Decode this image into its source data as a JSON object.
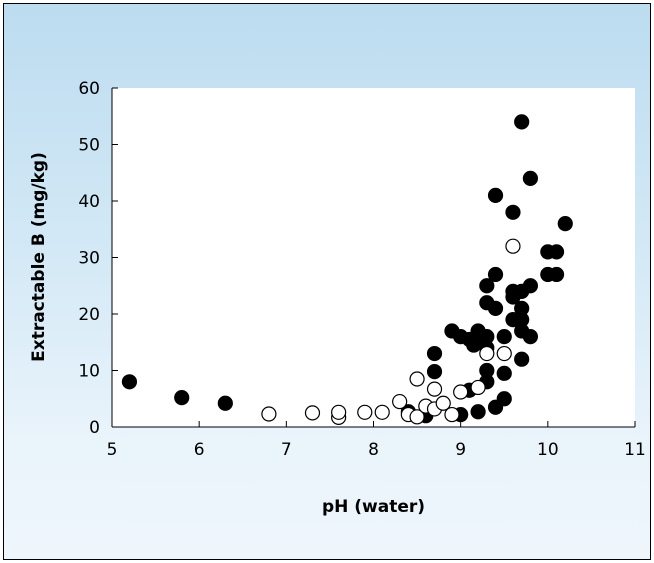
{
  "chart_data": {
    "type": "scatter",
    "title": "",
    "xlabel": "pH (water)",
    "ylabel": "Extractable B (mg/kg)",
    "xlim": [
      5,
      11
    ],
    "ylim": [
      0,
      60
    ],
    "x_ticks": [
      5,
      6,
      7,
      8,
      9,
      10,
      11
    ],
    "y_ticks": [
      0,
      10,
      20,
      30,
      40,
      50,
      60
    ],
    "grid": false,
    "legend": "none",
    "colors": {
      "filled_marker": "#000000",
      "open_marker_fill": "#ffffff",
      "open_marker_edge": "#000000",
      "plot_area": "#ffffff"
    },
    "series": [
      {
        "marker": "filled-circle",
        "points": [
          [
            5.2,
            8
          ],
          [
            5.8,
            5.2
          ],
          [
            6.3,
            4.2
          ],
          [
            8.4,
            2.7
          ],
          [
            8.6,
            2
          ],
          [
            8.7,
            9.8
          ],
          [
            8.7,
            13
          ],
          [
            8.9,
            17
          ],
          [
            9.0,
            2.2
          ],
          [
            9.0,
            16
          ],
          [
            9.1,
            6.5
          ],
          [
            9.1,
            15.5
          ],
          [
            9.15,
            14.5
          ],
          [
            9.2,
            2.7
          ],
          [
            9.2,
            17
          ],
          [
            9.25,
            15.5
          ],
          [
            9.3,
            8
          ],
          [
            9.3,
            10
          ],
          [
            9.3,
            14
          ],
          [
            9.3,
            16
          ],
          [
            9.3,
            22
          ],
          [
            9.3,
            25
          ],
          [
            9.4,
            3.5
          ],
          [
            9.4,
            21
          ],
          [
            9.4,
            27
          ],
          [
            9.4,
            41
          ],
          [
            9.5,
            5
          ],
          [
            9.5,
            9.5
          ],
          [
            9.5,
            16
          ],
          [
            9.6,
            19
          ],
          [
            9.6,
            23
          ],
          [
            9.6,
            24
          ],
          [
            9.6,
            38
          ],
          [
            9.7,
            12
          ],
          [
            9.7,
            17
          ],
          [
            9.7,
            19
          ],
          [
            9.7,
            21
          ],
          [
            9.7,
            24
          ],
          [
            9.7,
            54
          ],
          [
            9.8,
            16
          ],
          [
            9.8,
            25
          ],
          [
            9.8,
            44
          ],
          [
            10.0,
            27
          ],
          [
            10.0,
            31
          ],
          [
            10.1,
            27
          ],
          [
            10.1,
            31
          ],
          [
            10.2,
            36
          ]
        ]
      },
      {
        "marker": "open-circle",
        "points": [
          [
            6.8,
            2.3
          ],
          [
            7.3,
            2.5
          ],
          [
            7.6,
            1.7
          ],
          [
            7.6,
            2.6
          ],
          [
            7.9,
            2.6
          ],
          [
            8.1,
            2.6
          ],
          [
            8.3,
            4.5
          ],
          [
            8.4,
            2.2
          ],
          [
            8.5,
            1.8
          ],
          [
            8.5,
            8.5
          ],
          [
            8.6,
            3.7
          ],
          [
            8.7,
            3.2
          ],
          [
            8.7,
            6.7
          ],
          [
            8.8,
            4.2
          ],
          [
            8.9,
            2.2
          ],
          [
            9.0,
            6.2
          ],
          [
            9.2,
            7
          ],
          [
            9.3,
            13
          ],
          [
            9.5,
            13
          ],
          [
            9.6,
            32
          ]
        ]
      }
    ]
  }
}
